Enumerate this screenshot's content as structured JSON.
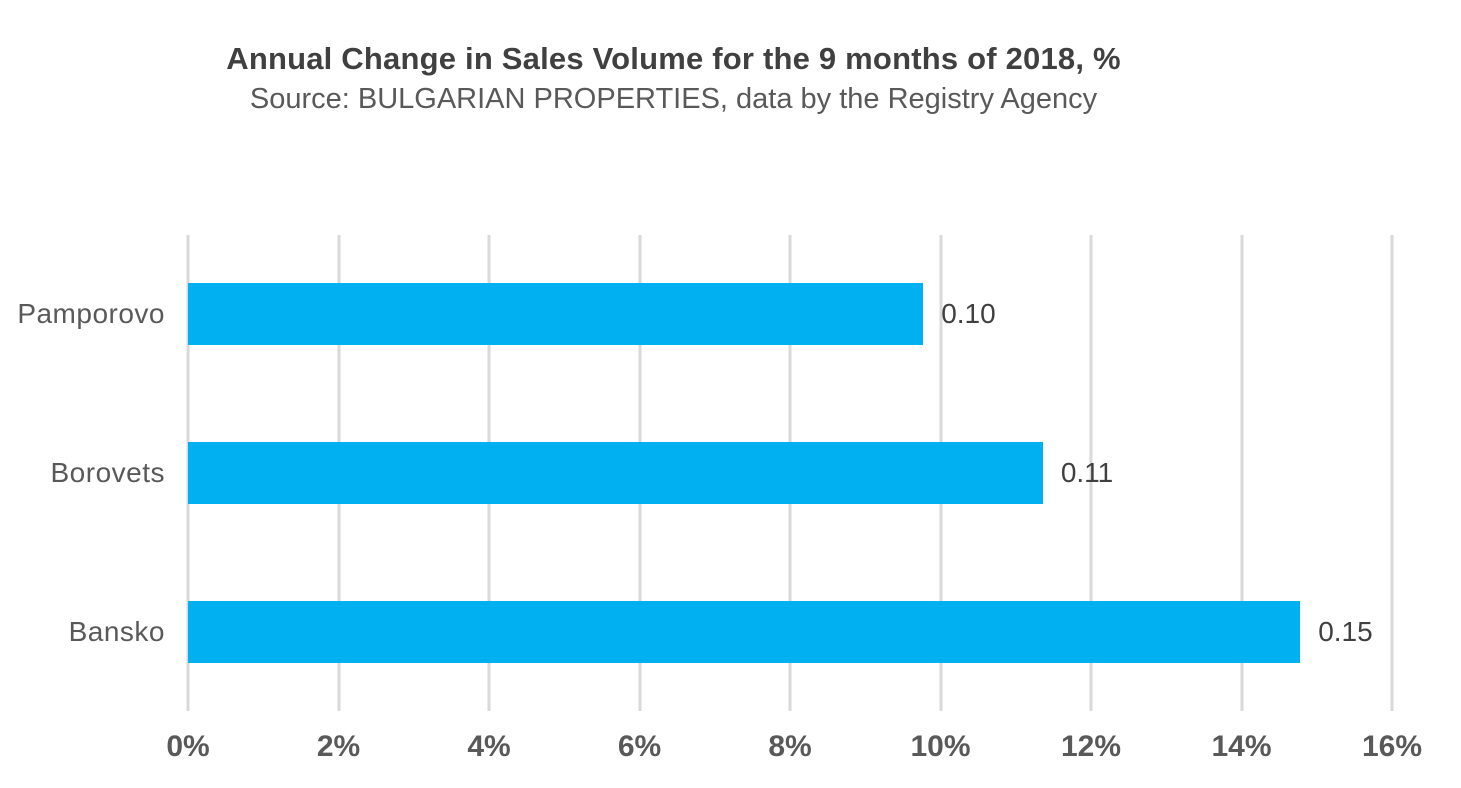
{
  "colors": {
    "background": "#FFFFFF",
    "bar": "#00B0F0",
    "title": "#404040",
    "subtitle": "#595959",
    "category_text": "#595959",
    "axis_text": "#595959",
    "data_label": "#404040",
    "gridline": "#D9D9D9"
  },
  "chart_data": {
    "type": "bar",
    "orientation": "horizontal",
    "title": "Annual Change in Sales Volume for the 9 months of 2018, %",
    "subtitle": "Source: BULGARIAN PROPERTIES, data by the Registry Agency",
    "categories": [
      "Pamporovo",
      "Borovets",
      "Bansko"
    ],
    "values": [
      0.0977,
      0.1136,
      0.1478
    ],
    "data_labels": [
      "0.10",
      "0.11",
      "0.15"
    ],
    "xlabel": "",
    "ylabel": "",
    "x_axis": {
      "min": 0,
      "max": 0.16,
      "tick_step": 0.02,
      "tick_labels": [
        "0%",
        "2%",
        "4%",
        "6%",
        "8%",
        "10%",
        "12%",
        "14%",
        "16%"
      ],
      "format": "percent"
    },
    "grid": "vertical-only",
    "legend": "none"
  }
}
